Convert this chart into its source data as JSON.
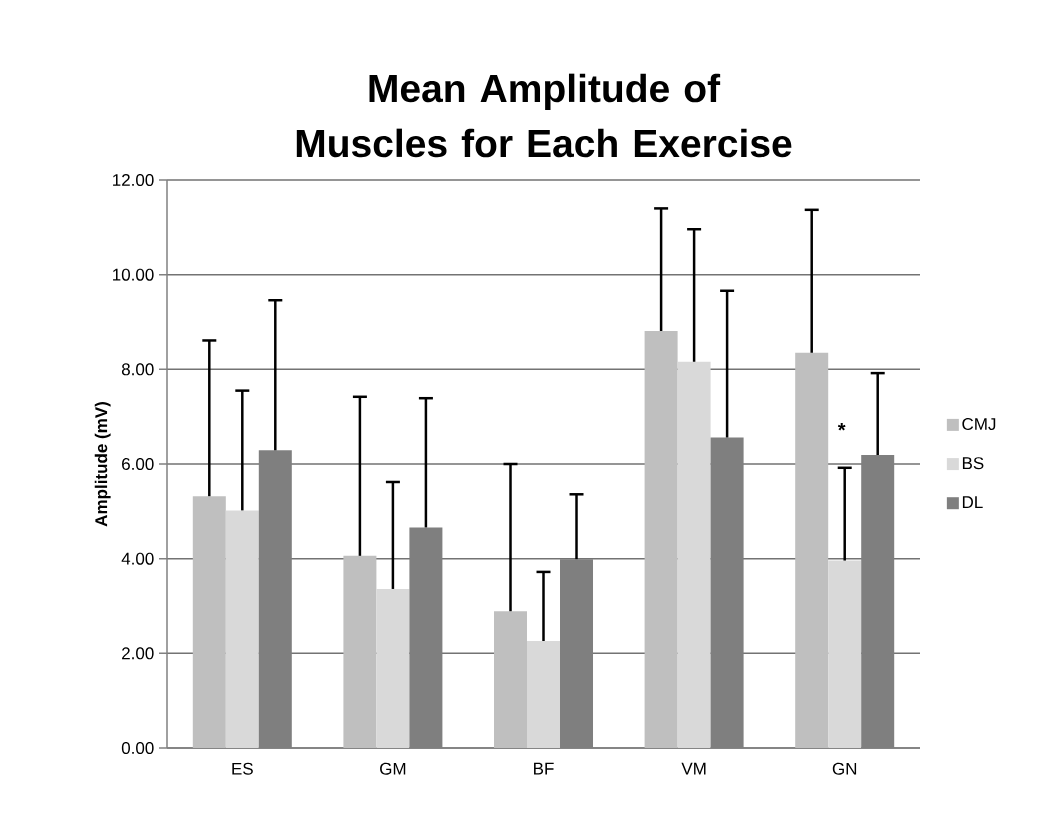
{
  "chart_data": {
    "type": "bar",
    "title": "Mean Amplitude of Muscles for Each Exercise",
    "ylabel": "Amplitude (mV)",
    "categories": [
      "ES",
      "GM",
      "BF",
      "VM",
      "GN"
    ],
    "series": [
      {
        "name": "CMJ",
        "color": "#bfbfbf",
        "values": [
          5.32,
          4.06,
          2.89,
          8.81,
          8.35
        ],
        "errors": [
          [
            5.32,
            8.61
          ],
          [
            4.06,
            7.42
          ],
          [
            2.89,
            6.0
          ],
          [
            8.81,
            11.4
          ],
          [
            8.35,
            11.37
          ]
        ]
      },
      {
        "name": "BS",
        "color": "#d9d9d9",
        "values": [
          5.02,
          3.36,
          2.26,
          8.16,
          3.96
        ],
        "errors": [
          [
            5.02,
            7.55
          ],
          [
            3.36,
            5.62
          ],
          [
            2.26,
            3.72
          ],
          [
            8.16,
            10.96
          ],
          [
            3.96,
            5.92
          ]
        ]
      },
      {
        "name": "DL",
        "color": "#7f7f7f",
        "values": [
          6.29,
          4.66,
          3.99,
          6.56,
          6.19
        ],
        "errors": [
          [
            6.29,
            9.46
          ],
          [
            4.66,
            7.39
          ],
          [
            3.99,
            5.36
          ],
          [
            6.56,
            9.66
          ],
          [
            6.19,
            7.92
          ]
        ]
      }
    ],
    "ylim": [
      0,
      12
    ],
    "yticks": [
      {
        "value": 0,
        "label": "0.00"
      },
      {
        "value": 2,
        "label": "2.00"
      },
      {
        "value": 4,
        "label": "4.00"
      },
      {
        "value": 6,
        "label": "6.00"
      },
      {
        "value": 8,
        "label": "8.00"
      },
      {
        "value": 10,
        "label": "10.00"
      },
      {
        "value": 12,
        "label": "12.00"
      }
    ],
    "grid": "y",
    "legend": "right",
    "annotations": [
      "*"
    ]
  }
}
